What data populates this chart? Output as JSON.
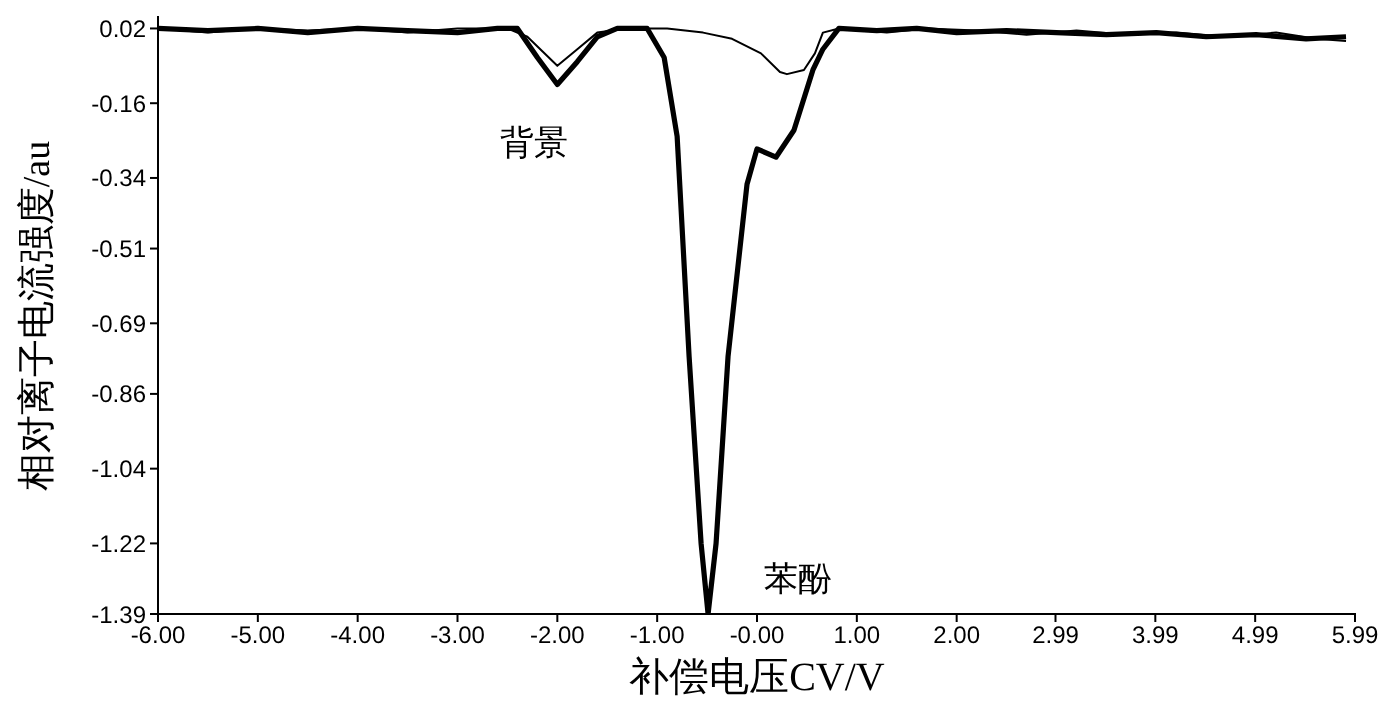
{
  "chart_data": {
    "type": "line",
    "xlabel": "补偿电压CV/V",
    "ylabel": "相对离子电流强度/au",
    "xlim": [
      -6,
      6
    ],
    "ylim": [
      -1.39,
      0.05
    ],
    "xticks": [
      {
        "value": -6,
        "label": "-6.00"
      },
      {
        "value": -5,
        "label": "-5.00"
      },
      {
        "value": -4,
        "label": "-4.00"
      },
      {
        "value": -3,
        "label": "-3.00"
      },
      {
        "value": -2,
        "label": "-2.00"
      },
      {
        "value": -1,
        "label": "-1.00"
      },
      {
        "value": 0,
        "label": "-0.00"
      },
      {
        "value": 1,
        "label": "1.00"
      },
      {
        "value": 2,
        "label": "2.00"
      },
      {
        "value": 2.99,
        "label": "2.99"
      },
      {
        "value": 3.99,
        "label": "3.99"
      },
      {
        "value": 4.99,
        "label": "4.99"
      },
      {
        "value": 5.99,
        "label": "5.99"
      }
    ],
    "yticks": [
      0.02,
      -0.16,
      -0.34,
      -0.51,
      -0.69,
      -0.86,
      -1.04,
      -1.22,
      -1.39
    ],
    "grid": false,
    "legend": false,
    "marker": "none",
    "line_style": "solid",
    "series": [
      {
        "color": "#000000",
        "x": [
          -6.0,
          -5.5,
          -5.0,
          -4.5,
          -4.0,
          -3.5,
          -3.0,
          -2.6,
          -2.4,
          -2.2,
          -2.0,
          -1.8,
          -1.6,
          -1.4,
          -1.1,
          -0.93,
          -0.8,
          -0.68,
          -0.56,
          -0.49,
          -0.41,
          -0.29,
          -0.1,
          0.0,
          0.19,
          0.37,
          0.56,
          0.66,
          0.82,
          1.2,
          1.6,
          2.0,
          2.5,
          3.0,
          3.5,
          4.0,
          4.5,
          5.0,
          5.5,
          5.9
        ],
        "values": [
          0.02,
          0.015,
          0.02,
          0.01,
          0.02,
          0.015,
          0.01,
          0.02,
          0.02,
          -0.05,
          -0.115,
          -0.06,
          0.0,
          0.02,
          0.02,
          -0.05,
          -0.24,
          -0.77,
          -1.22,
          -1.39,
          -1.22,
          -0.77,
          -0.355,
          -0.27,
          -0.29,
          -0.225,
          -0.08,
          -0.03,
          0.02,
          0.015,
          0.02,
          0.01,
          0.015,
          0.01,
          0.005,
          0.01,
          0.0,
          0.005,
          -0.005,
          0.0
        ]
      },
      {
        "color": "#000000",
        "x": [
          -6.0,
          -5.5,
          -5.0,
          -4.5,
          -4.0,
          -3.5,
          -3.0,
          -2.5,
          -2.3,
          -2.0,
          -1.8,
          -1.6,
          -1.3,
          -0.9,
          -0.54,
          -0.25,
          0.04,
          0.23,
          0.3,
          0.47,
          0.58,
          0.66,
          0.82,
          1.3,
          1.7,
          2.2,
          2.7,
          3.2,
          3.7,
          4.2,
          4.7,
          5.2,
          5.6,
          5.9
        ],
        "values": [
          0.02,
          0.01,
          0.02,
          0.015,
          0.02,
          0.01,
          0.02,
          0.02,
          0.0,
          -0.07,
          -0.03,
          0.01,
          0.02,
          0.02,
          0.01,
          -0.005,
          -0.04,
          -0.085,
          -0.09,
          -0.08,
          -0.04,
          0.01,
          0.02,
          0.01,
          0.02,
          0.015,
          0.005,
          0.015,
          0.005,
          0.01,
          0.0,
          0.01,
          -0.005,
          -0.01
        ]
      }
    ],
    "annotations": [
      "背景",
      "苯酚"
    ]
  }
}
